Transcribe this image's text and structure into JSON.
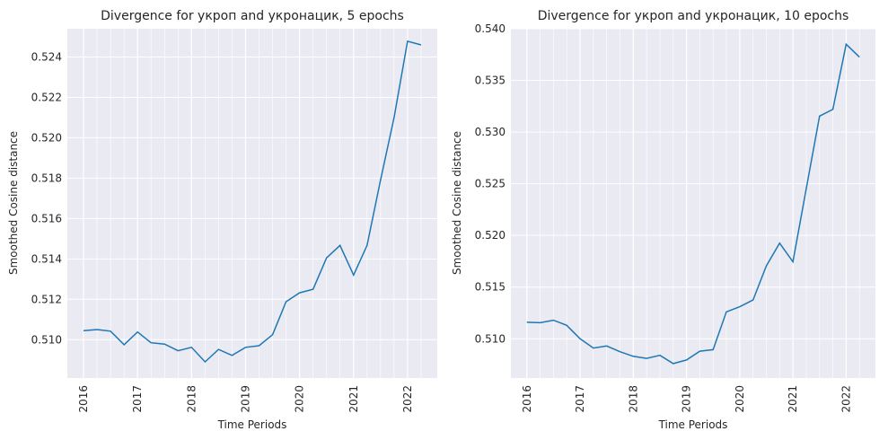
{
  "chart_data": [
    {
      "type": "line",
      "title": "Divergence for укроп and укронацик, 5 epochs",
      "xlabel": "Time Periods",
      "ylabel": "Smoothed Cosine distance",
      "xticks": [
        "2016",
        "2017",
        "2018",
        "2019",
        "2020",
        "2021",
        "2022"
      ],
      "yticks": [
        "0.510",
        "0.512",
        "0.514",
        "0.516",
        "0.518",
        "0.520",
        "0.522",
        "0.524"
      ],
      "ylim": [
        0.5081,
        0.5254
      ],
      "grid": true,
      "color": "#1f77b4",
      "x": [
        2016.0,
        2016.25,
        2016.5,
        2016.75,
        2017.0,
        2017.25,
        2017.5,
        2017.75,
        2018.0,
        2018.25,
        2018.5,
        2018.75,
        2019.0,
        2019.25,
        2019.5,
        2019.75,
        2020.0,
        2020.25,
        2020.5,
        2020.75,
        2021.0,
        2021.25,
        2021.5,
        2021.75,
        2022.0,
        2022.25
      ],
      "values": [
        0.51045,
        0.5105,
        0.51042,
        0.50975,
        0.51038,
        0.50985,
        0.50978,
        0.50945,
        0.50962,
        0.5089,
        0.50952,
        0.50922,
        0.50962,
        0.5097,
        0.51025,
        0.51188,
        0.51232,
        0.5125,
        0.51405,
        0.51467,
        0.5132,
        0.51467,
        0.5179,
        0.521,
        0.52478,
        0.5246
      ]
    },
    {
      "type": "line",
      "title": "Divergence for укроп and укронацик, 10 epochs",
      "xlabel": "Time Periods",
      "ylabel": "Smoothed Cosine distance",
      "xticks": [
        "2016",
        "2017",
        "2018",
        "2019",
        "2020",
        "2021",
        "2022"
      ],
      "yticks": [
        "0.510",
        "0.515",
        "0.520",
        "0.525",
        "0.530",
        "0.535",
        "0.540"
      ],
      "ylim": [
        0.5062,
        0.54
      ],
      "grid": true,
      "color": "#1f77b4",
      "x": [
        2016.0,
        2016.25,
        2016.5,
        2016.75,
        2017.0,
        2017.25,
        2017.5,
        2017.75,
        2018.0,
        2018.25,
        2018.5,
        2018.75,
        2019.0,
        2019.25,
        2019.5,
        2019.75,
        2020.0,
        2020.25,
        2020.5,
        2020.75,
        2021.0,
        2021.25,
        2021.5,
        2021.75,
        2022.0,
        2022.25
      ],
      "values": [
        0.5116,
        0.51155,
        0.5118,
        0.5113,
        0.51,
        0.5091,
        0.5093,
        0.50875,
        0.5083,
        0.5081,
        0.5084,
        0.5076,
        0.50795,
        0.5088,
        0.50895,
        0.5126,
        0.5131,
        0.51375,
        0.51705,
        0.51925,
        0.51745,
        0.5245,
        0.53155,
        0.5322,
        0.5385,
        0.53725
      ]
    }
  ]
}
